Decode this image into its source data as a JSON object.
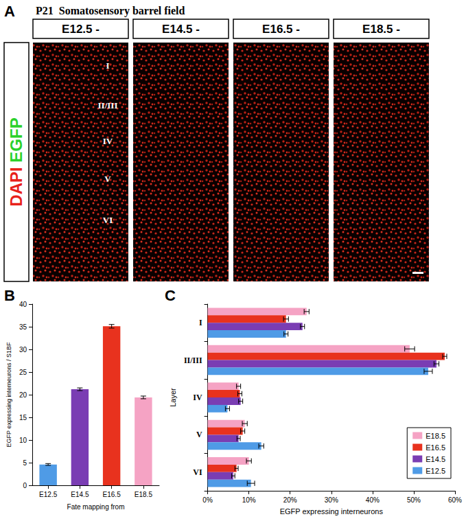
{
  "panel_a": {
    "panel": "A",
    "title": "P21  Somatosensory barrel field",
    "columns": [
      "E12.5 -",
      "E14.5 -",
      "E16.5 -",
      "E18.5 -"
    ],
    "stain_labels": [
      {
        "text": "DAPI",
        "color": "#e8211a"
      },
      {
        "text": "EGFP",
        "color": "#2bd12b"
      }
    ],
    "layers": [
      "I",
      "II/III",
      "IV",
      "V",
      "VI"
    ]
  },
  "chart_data": [
    {
      "panel": "B",
      "type": "bar",
      "categories": [
        "E12.5",
        "E14.5",
        "E16.5",
        "E18.5"
      ],
      "values": [
        4.6,
        21.2,
        35.1,
        19.4
      ],
      "errors": [
        0.2,
        0.3,
        0.4,
        0.3
      ],
      "colors": [
        "#4f9be6",
        "#7a3db3",
        "#e8321e",
        "#f5a3c4"
      ],
      "xlabel": "Fate mapping from",
      "ylabel": "EGFP expressing interneurons / S1BF",
      "ylim": [
        0,
        40
      ],
      "yticks": [
        0,
        5,
        10,
        15,
        20,
        25,
        30,
        35,
        40
      ],
      "grid": false
    },
    {
      "panel": "C",
      "type": "bar",
      "orientation": "horizontal",
      "categories": [
        "I",
        "II/III",
        "IV",
        "V",
        "VI"
      ],
      "series": [
        {
          "name": "E18.5",
          "color": "#f5a3c4",
          "values": [
            24,
            49,
            7.5,
            9,
            10
          ],
          "errors": [
            0.6,
            1.2,
            0.5,
            0.6,
            0.6
          ]
        },
        {
          "name": "E16.5",
          "color": "#e8321e",
          "values": [
            19,
            57.5,
            7.8,
            8.5,
            7
          ],
          "errors": [
            0.6,
            0.5,
            0.5,
            0.5,
            0.4
          ]
        },
        {
          "name": "E14.5",
          "color": "#7a3db3",
          "values": [
            23,
            55.5,
            8,
            7.5,
            6.2
          ],
          "errors": [
            0.5,
            0.6,
            0.5,
            0.4,
            0.4
          ]
        },
        {
          "name": "E12.5",
          "color": "#4f9be6",
          "values": [
            19,
            53.5,
            4.8,
            13,
            10.5
          ],
          "errors": [
            0.5,
            1.0,
            0.5,
            0.6,
            0.9
          ]
        }
      ],
      "xlabel": "EGFP expressing interneurons",
      "ylabel": "Layer",
      "xlim": [
        0,
        60
      ],
      "xticks": [
        {
          "value": 0,
          "label": "0%"
        },
        {
          "value": 10,
          "label": "10%"
        },
        {
          "value": 20,
          "label": "20%"
        },
        {
          "value": 30,
          "label": "30%"
        },
        {
          "value": 40,
          "label": "40%"
        },
        {
          "value": 50,
          "label": "50%"
        },
        {
          "value": 60,
          "label": "60%"
        }
      ],
      "legend": "lower right",
      "grid": false
    }
  ]
}
